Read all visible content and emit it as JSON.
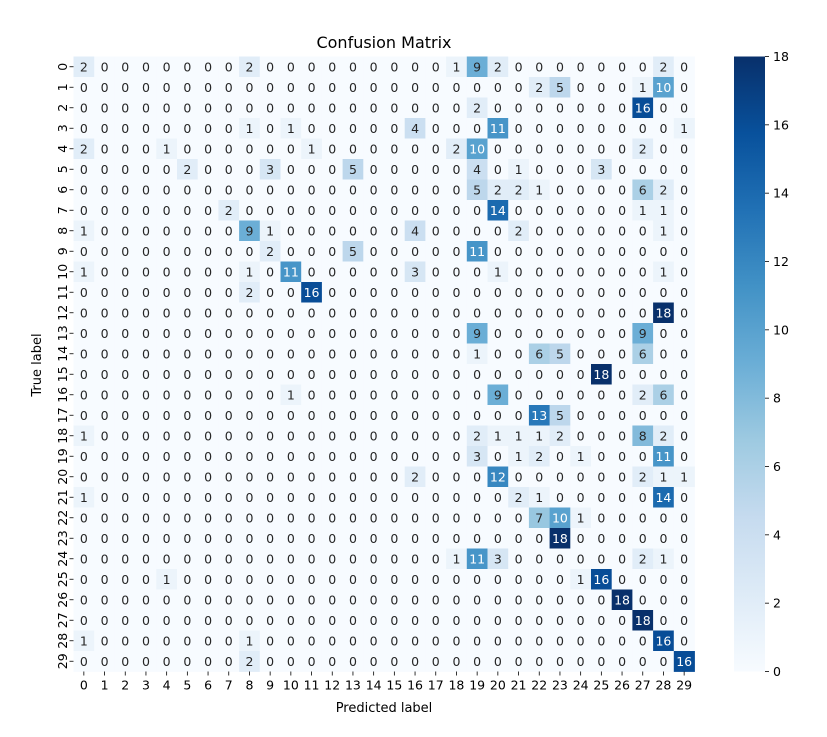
{
  "chart_data": {
    "type": "heatmap",
    "title": "Confusion Matrix",
    "xlabel": "Predicted label",
    "ylabel": "True label",
    "x_categories": [
      "0",
      "1",
      "2",
      "3",
      "4",
      "5",
      "6",
      "7",
      "8",
      "9",
      "10",
      "11",
      "12",
      "13",
      "14",
      "15",
      "16",
      "17",
      "18",
      "19",
      "20",
      "21",
      "22",
      "23",
      "24",
      "25",
      "26",
      "27",
      "28",
      "29"
    ],
    "y_categories": [
      "0",
      "1",
      "2",
      "3",
      "4",
      "5",
      "6",
      "7",
      "8",
      "9",
      "10",
      "11",
      "12",
      "13",
      "14",
      "15",
      "16",
      "17",
      "18",
      "19",
      "20",
      "21",
      "22",
      "23",
      "24",
      "25",
      "26",
      "27",
      "28",
      "29"
    ],
    "values": [
      [
        2,
        0,
        0,
        0,
        0,
        0,
        0,
        0,
        2,
        0,
        0,
        0,
        0,
        0,
        0,
        0,
        0,
        0,
        1,
        9,
        2,
        0,
        0,
        0,
        0,
        0,
        0,
        0,
        2,
        0
      ],
      [
        0,
        0,
        0,
        0,
        0,
        0,
        0,
        0,
        0,
        0,
        0,
        0,
        0,
        0,
        0,
        0,
        0,
        0,
        0,
        0,
        0,
        0,
        2,
        5,
        0,
        0,
        0,
        1,
        10,
        0
      ],
      [
        0,
        0,
        0,
        0,
        0,
        0,
        0,
        0,
        0,
        0,
        0,
        0,
        0,
        0,
        0,
        0,
        0,
        0,
        0,
        2,
        0,
        0,
        0,
        0,
        0,
        0,
        0,
        16,
        0,
        0
      ],
      [
        0,
        0,
        0,
        0,
        0,
        0,
        0,
        0,
        1,
        0,
        1,
        0,
        0,
        0,
        0,
        0,
        4,
        0,
        0,
        0,
        11,
        0,
        0,
        0,
        0,
        0,
        0,
        0,
        0,
        1
      ],
      [
        2,
        0,
        0,
        0,
        1,
        0,
        0,
        0,
        0,
        0,
        0,
        1,
        0,
        0,
        0,
        0,
        0,
        0,
        2,
        10,
        0,
        0,
        0,
        0,
        0,
        0,
        0,
        2,
        0,
        0
      ],
      [
        0,
        0,
        0,
        0,
        0,
        2,
        0,
        0,
        0,
        3,
        0,
        0,
        0,
        5,
        0,
        0,
        0,
        0,
        0,
        4,
        0,
        1,
        0,
        0,
        0,
        3,
        0,
        0,
        0,
        0
      ],
      [
        0,
        0,
        0,
        0,
        0,
        0,
        0,
        0,
        0,
        0,
        0,
        0,
        0,
        0,
        0,
        0,
        0,
        0,
        0,
        5,
        2,
        2,
        1,
        0,
        0,
        0,
        0,
        6,
        2,
        0
      ],
      [
        0,
        0,
        0,
        0,
        0,
        0,
        0,
        2,
        0,
        0,
        0,
        0,
        0,
        0,
        0,
        0,
        0,
        0,
        0,
        0,
        14,
        0,
        0,
        0,
        0,
        0,
        0,
        1,
        1,
        0
      ],
      [
        1,
        0,
        0,
        0,
        0,
        0,
        0,
        0,
        9,
        1,
        0,
        0,
        0,
        0,
        0,
        0,
        4,
        0,
        0,
        0,
        0,
        2,
        0,
        0,
        0,
        0,
        0,
        0,
        1,
        0
      ],
      [
        0,
        0,
        0,
        0,
        0,
        0,
        0,
        0,
        0,
        2,
        0,
        0,
        0,
        5,
        0,
        0,
        0,
        0,
        0,
        11,
        0,
        0,
        0,
        0,
        0,
        0,
        0,
        0,
        0,
        0
      ],
      [
        1,
        0,
        0,
        0,
        0,
        0,
        0,
        0,
        1,
        0,
        11,
        0,
        0,
        0,
        0,
        0,
        3,
        0,
        0,
        0,
        1,
        0,
        0,
        0,
        0,
        0,
        0,
        0,
        1,
        0
      ],
      [
        0,
        0,
        0,
        0,
        0,
        0,
        0,
        0,
        2,
        0,
        0,
        16,
        0,
        0,
        0,
        0,
        0,
        0,
        0,
        0,
        0,
        0,
        0,
        0,
        0,
        0,
        0,
        0,
        0,
        0
      ],
      [
        0,
        0,
        0,
        0,
        0,
        0,
        0,
        0,
        0,
        0,
        0,
        0,
        0,
        0,
        0,
        0,
        0,
        0,
        0,
        0,
        0,
        0,
        0,
        0,
        0,
        0,
        0,
        0,
        18,
        0
      ],
      [
        0,
        0,
        0,
        0,
        0,
        0,
        0,
        0,
        0,
        0,
        0,
        0,
        0,
        0,
        0,
        0,
        0,
        0,
        0,
        9,
        0,
        0,
        0,
        0,
        0,
        0,
        0,
        9,
        0,
        0
      ],
      [
        0,
        0,
        0,
        0,
        0,
        0,
        0,
        0,
        0,
        0,
        0,
        0,
        0,
        0,
        0,
        0,
        0,
        0,
        0,
        1,
        0,
        0,
        6,
        5,
        0,
        0,
        0,
        6,
        0,
        0
      ],
      [
        0,
        0,
        0,
        0,
        0,
        0,
        0,
        0,
        0,
        0,
        0,
        0,
        0,
        0,
        0,
        0,
        0,
        0,
        0,
        0,
        0,
        0,
        0,
        0,
        0,
        18,
        0,
        0,
        0,
        0
      ],
      [
        0,
        0,
        0,
        0,
        0,
        0,
        0,
        0,
        0,
        0,
        1,
        0,
        0,
        0,
        0,
        0,
        0,
        0,
        0,
        0,
        9,
        0,
        0,
        0,
        0,
        0,
        0,
        2,
        6,
        0
      ],
      [
        0,
        0,
        0,
        0,
        0,
        0,
        0,
        0,
        0,
        0,
        0,
        0,
        0,
        0,
        0,
        0,
        0,
        0,
        0,
        0,
        0,
        0,
        13,
        5,
        0,
        0,
        0,
        0,
        0,
        0
      ],
      [
        1,
        0,
        0,
        0,
        0,
        0,
        0,
        0,
        0,
        0,
        0,
        0,
        0,
        0,
        0,
        0,
        0,
        0,
        0,
        2,
        1,
        1,
        1,
        2,
        0,
        0,
        0,
        8,
        2,
        0
      ],
      [
        0,
        0,
        0,
        0,
        0,
        0,
        0,
        0,
        0,
        0,
        0,
        0,
        0,
        0,
        0,
        0,
        0,
        0,
        0,
        3,
        0,
        1,
        2,
        0,
        1,
        0,
        0,
        0,
        11,
        0
      ],
      [
        0,
        0,
        0,
        0,
        0,
        0,
        0,
        0,
        0,
        0,
        0,
        0,
        0,
        0,
        0,
        0,
        2,
        0,
        0,
        0,
        12,
        0,
        0,
        0,
        0,
        0,
        0,
        2,
        1,
        1
      ],
      [
        1,
        0,
        0,
        0,
        0,
        0,
        0,
        0,
        0,
        0,
        0,
        0,
        0,
        0,
        0,
        0,
        0,
        0,
        0,
        0,
        0,
        2,
        1,
        0,
        0,
        0,
        0,
        0,
        14,
        0
      ],
      [
        0,
        0,
        0,
        0,
        0,
        0,
        0,
        0,
        0,
        0,
        0,
        0,
        0,
        0,
        0,
        0,
        0,
        0,
        0,
        0,
        0,
        0,
        7,
        10,
        1,
        0,
        0,
        0,
        0,
        0
      ],
      [
        0,
        0,
        0,
        0,
        0,
        0,
        0,
        0,
        0,
        0,
        0,
        0,
        0,
        0,
        0,
        0,
        0,
        0,
        0,
        0,
        0,
        0,
        0,
        18,
        0,
        0,
        0,
        0,
        0,
        0
      ],
      [
        0,
        0,
        0,
        0,
        0,
        0,
        0,
        0,
        0,
        0,
        0,
        0,
        0,
        0,
        0,
        0,
        0,
        0,
        1,
        11,
        3,
        0,
        0,
        0,
        0,
        0,
        0,
        2,
        1,
        0
      ],
      [
        0,
        0,
        0,
        0,
        1,
        0,
        0,
        0,
        0,
        0,
        0,
        0,
        0,
        0,
        0,
        0,
        0,
        0,
        0,
        0,
        0,
        0,
        0,
        0,
        1,
        16,
        0,
        0,
        0,
        0
      ],
      [
        0,
        0,
        0,
        0,
        0,
        0,
        0,
        0,
        0,
        0,
        0,
        0,
        0,
        0,
        0,
        0,
        0,
        0,
        0,
        0,
        0,
        0,
        0,
        0,
        0,
        0,
        18,
        0,
        0,
        0
      ],
      [
        0,
        0,
        0,
        0,
        0,
        0,
        0,
        0,
        0,
        0,
        0,
        0,
        0,
        0,
        0,
        0,
        0,
        0,
        0,
        0,
        0,
        0,
        0,
        0,
        0,
        0,
        0,
        18,
        0,
        0
      ],
      [
        1,
        0,
        0,
        0,
        0,
        0,
        0,
        0,
        1,
        0,
        0,
        0,
        0,
        0,
        0,
        0,
        0,
        0,
        0,
        0,
        0,
        0,
        0,
        0,
        0,
        0,
        0,
        0,
        16,
        0
      ],
      [
        0,
        0,
        0,
        0,
        0,
        0,
        0,
        0,
        2,
        0,
        0,
        0,
        0,
        0,
        0,
        0,
        0,
        0,
        0,
        0,
        0,
        0,
        0,
        0,
        0,
        0,
        0,
        0,
        0,
        16
      ]
    ],
    "colorbar": {
      "min": 0,
      "max": 18,
      "ticks": [
        "0",
        "2",
        "4",
        "6",
        "8",
        "10",
        "12",
        "14",
        "16",
        "18"
      ]
    },
    "colormap": "Blues",
    "colors": {
      "low": "#f7fbff",
      "high": "#08306b"
    },
    "grid": false,
    "legend": "colorbar-right"
  }
}
